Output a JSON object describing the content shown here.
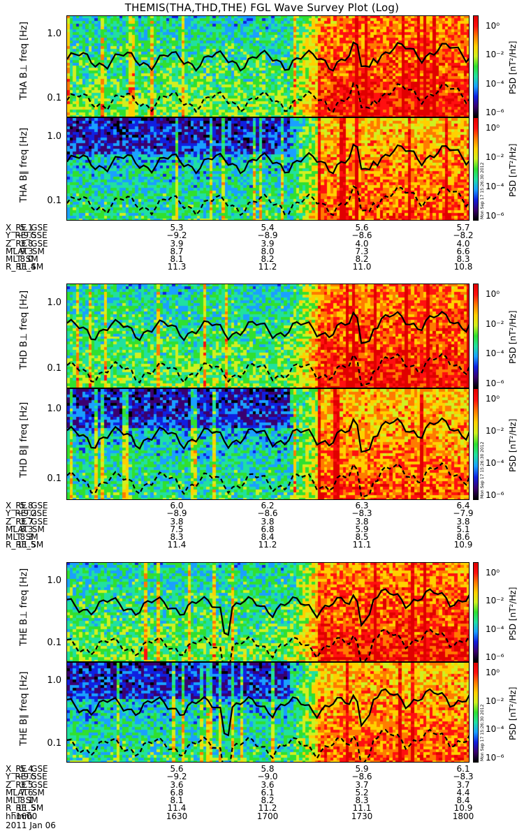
{
  "chart_data": {
    "type": "heatmap",
    "title": "THEMIS(THA,THD,THE) FGL Wave Survey Plot (Log)",
    "date_label": "2011 Jan 06",
    "yaxis": {
      "label": "freq [Hz]",
      "scale": "log",
      "ticks": [
        "1.0",
        "0.1"
      ]
    },
    "colorbar": {
      "label": "PSD [nT²/Hz]",
      "ticks": [
        "10⁰",
        "10⁻²",
        "10⁻⁴",
        "10⁻⁶"
      ]
    },
    "stamp": "Mon Sep 17 15:26:30 2012",
    "probes": [
      {
        "id": "THA",
        "panels": [
          {
            "label": "THA B⊥"
          },
          {
            "label": "THA B∥"
          }
        ],
        "ephemeris": [
          {
            "name": "X_RE_GSE",
            "values": [
              "5.1",
              "5.3",
              "5.4",
              "5.6",
              "5.7"
            ]
          },
          {
            "name": "Y_RE_GSE",
            "values": [
              "−9.5",
              "−9.2",
              "−8.9",
              "−8.6",
              "−8.2"
            ]
          },
          {
            "name": "Z_RE_GSE",
            "values": [
              "3.8",
              "3.9",
              "3.9",
              "4.0",
              "4.0"
            ]
          },
          {
            "name": "MLAT_SM",
            "values": [
              "9.3",
              "8.7",
              "8.0",
              "7.3",
              "6.6"
            ]
          },
          {
            "name": "MLT_SM",
            "values": [
              "8.0",
              "8.1",
              "8.2",
              "8.2",
              "8.3"
            ]
          },
          {
            "name": "R_RE_SM",
            "values": [
              "11.4",
              "11.3",
              "11.2",
              "11.0",
              "10.8"
            ]
          }
        ]
      },
      {
        "id": "THD",
        "panels": [
          {
            "label": "THD B⊥"
          },
          {
            "label": "THD B∥"
          }
        ],
        "ephemeris": [
          {
            "name": "X_RE_GSE",
            "values": [
              "5.8",
              "6.0",
              "6.2",
              "6.3",
              "6.4"
            ]
          },
          {
            "name": "Y_RE_GSE",
            "values": [
              "−9.2",
              "−8.9",
              "−8.6",
              "−8.3",
              "−7.9"
            ]
          },
          {
            "name": "Z_RE_GSE",
            "values": [
              "3.7",
              "3.8",
              "3.8",
              "3.8",
              "3.8"
            ]
          },
          {
            "name": "MLAT_SM",
            "values": [
              "8.3",
              "7.5",
              "6.8",
              "5.9",
              "5.1"
            ]
          },
          {
            "name": "MLT_SM",
            "values": [
              "8.3",
              "8.3",
              "8.4",
              "8.5",
              "8.6"
            ]
          },
          {
            "name": "R_RE_SM",
            "values": [
              "11.5",
              "11.4",
              "11.2",
              "11.1",
              "10.9"
            ]
          }
        ]
      },
      {
        "id": "THE",
        "panels": [
          {
            "label": "THE B⊥"
          },
          {
            "label": "THE B∥"
          }
        ],
        "ephemeris": [
          {
            "name": "X_RE_GSE",
            "values": [
              "5.4",
              "5.6",
              "5.8",
              "5.9",
              "6.1"
            ]
          },
          {
            "name": "Y_RE_GSE",
            "values": [
              "−9.5",
              "−9.2",
              "−9.0",
              "−8.6",
              "−8.3"
            ]
          },
          {
            "name": "Z_RE_GSE",
            "values": [
              "3.5",
              "3.6",
              "3.6",
              "3.7",
              "3.7"
            ]
          },
          {
            "name": "MLAT_SM",
            "values": [
              "7.6",
              "6.8",
              "6.1",
              "5.2",
              "4.4"
            ]
          },
          {
            "name": "MLT_SM",
            "values": [
              "8.1",
              "8.1",
              "8.2",
              "8.3",
              "8.4"
            ]
          },
          {
            "name": "R_RE_SM",
            "values": [
              "11.5",
              "11.4",
              "11.2",
              "11.1",
              "10.9"
            ]
          },
          {
            "name": "hhmm",
            "values": [
              "1600",
              "1630",
              "1700",
              "1730",
              "1800"
            ]
          }
        ]
      }
    ],
    "colors": {
      "palette": [
        "#000000",
        "#3a0070",
        "#1020e0",
        "#1aa0ff",
        "#20e0a0",
        "#30e030",
        "#d0f020",
        "#ffd000",
        "#ff7a00",
        "#ff1010",
        "#e00000"
      ]
    }
  }
}
